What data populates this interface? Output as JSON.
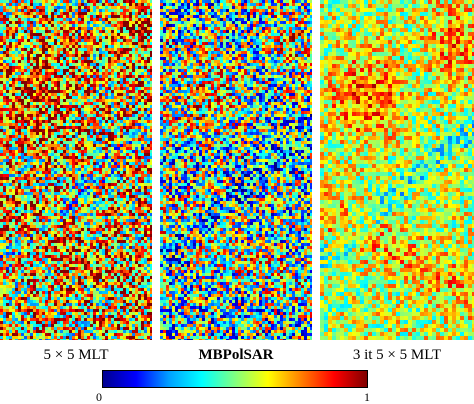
{
  "panels": [
    {
      "caption": "5 × 5 MLT",
      "noise": "high",
      "mean_level": 0.68
    },
    {
      "caption": "MBPolSAR",
      "noise": "high",
      "mean_level": 0.5
    },
    {
      "caption": "3 it 5 × 5 MLT",
      "noise": "low",
      "mean_level": 0.62
    }
  ],
  "colorbar": {
    "min_label": "0",
    "max_label": "1",
    "colormap": "jet",
    "stops": [
      "#00008f",
      "#0000ff",
      "#00a0ff",
      "#00ffff",
      "#80ff80",
      "#ffff00",
      "#ff8000",
      "#ff0000",
      "#800000"
    ]
  }
}
